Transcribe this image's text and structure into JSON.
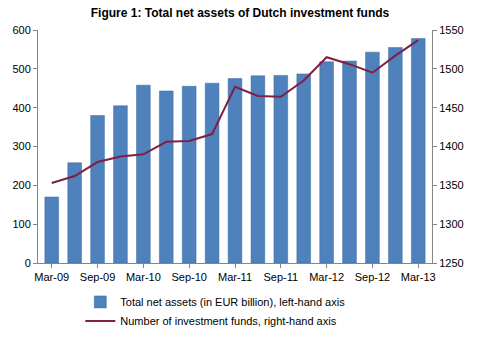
{
  "chart_data": {
    "type": "bar",
    "title": "Figure 1: Total net assets of Dutch investment funds",
    "categories": [
      "Mar-09",
      null,
      "Sep-09",
      null,
      "Mar-10",
      null,
      "Sep-10",
      null,
      "Mar-11",
      null,
      "Sep-11",
      null,
      "Mar-12",
      null,
      "Sep-12",
      null,
      "Mar-13"
    ],
    "series": [
      {
        "name": "Total net assets (in EUR billion), left-hand axis",
        "type": "bar",
        "color": "#4f81bd",
        "values": [
          170,
          258,
          380,
          405,
          458,
          443,
          455,
          463,
          475,
          482,
          483,
          487,
          518,
          520,
          543,
          555,
          578
        ]
      },
      {
        "name": "Number of investment funds, right-hand axis",
        "type": "line",
        "axis": "y2",
        "color": "#7f1f45",
        "values": [
          1353,
          1362,
          1380,
          1387,
          1390,
          1406,
          1407,
          1416,
          1477,
          1465,
          1464,
          1485,
          1515,
          1506,
          1495,
          1517,
          1537
        ]
      }
    ],
    "ylim": [
      0,
      600
    ],
    "yticks": [
      0,
      100,
      200,
      300,
      400,
      500,
      600
    ],
    "y2lim": [
      1250,
      1550
    ],
    "y2ticks": [
      1250,
      1300,
      1350,
      1400,
      1450,
      1500,
      1550
    ],
    "grid": false,
    "legend": "bottom"
  }
}
